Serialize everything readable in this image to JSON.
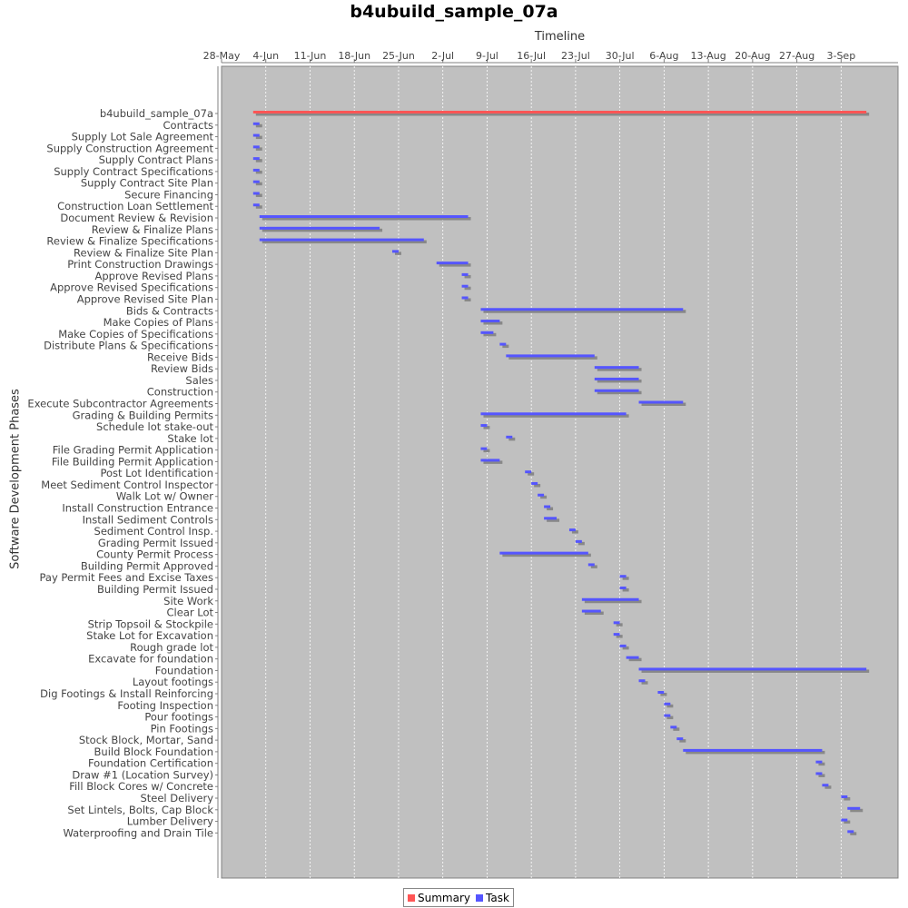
{
  "chart_data": {
    "type": "gantt",
    "title": "b4ubuild_sample_07a",
    "xlabel": "Timeline",
    "ylabel": "Software Development Phases",
    "x_ticks": [
      "28-May",
      "4-Jun",
      "11-Jun",
      "18-Jun",
      "25-Jun",
      "2-Jul",
      "9-Jul",
      "16-Jul",
      "23-Jul",
      "30-Jul",
      "6-Aug",
      "13-Aug",
      "20-Aug",
      "27-Aug",
      "3-Sep"
    ],
    "xlim": [
      "2024-05-28",
      "2024-09-12"
    ],
    "grid": true,
    "legend_position": "bottom",
    "legend": [
      {
        "name": "Summary",
        "color": "#ff5555"
      },
      {
        "name": "Task",
        "color": "#5555ff"
      }
    ],
    "shadow_color": "#888888",
    "tasks": [
      {
        "name": "b4ubuild_sample_07a",
        "type": "summary",
        "start": "2024-06-02",
        "end": "2024-09-06"
      },
      {
        "name": "Contracts",
        "type": "task",
        "start": "2024-06-02",
        "end": "2024-06-02"
      },
      {
        "name": "Supply Lot Sale Agreement",
        "type": "task",
        "start": "2024-06-02",
        "end": "2024-06-02"
      },
      {
        "name": "Supply Construction Agreement",
        "type": "task",
        "start": "2024-06-02",
        "end": "2024-06-02"
      },
      {
        "name": "Supply Contract Plans",
        "type": "task",
        "start": "2024-06-02",
        "end": "2024-06-02"
      },
      {
        "name": "Supply Contract Specifications",
        "type": "task",
        "start": "2024-06-02",
        "end": "2024-06-02"
      },
      {
        "name": "Supply Contract Site Plan",
        "type": "task",
        "start": "2024-06-02",
        "end": "2024-06-02"
      },
      {
        "name": "Secure Financing",
        "type": "task",
        "start": "2024-06-02",
        "end": "2024-06-02"
      },
      {
        "name": "Construction Loan Settlement",
        "type": "task",
        "start": "2024-06-02",
        "end": "2024-06-02"
      },
      {
        "name": "Document Review & Revision",
        "type": "task",
        "start": "2024-06-03",
        "end": "2024-07-05"
      },
      {
        "name": "Review & Finalize Plans",
        "type": "task",
        "start": "2024-06-03",
        "end": "2024-06-21"
      },
      {
        "name": "Review & Finalize Specifications",
        "type": "task",
        "start": "2024-06-03",
        "end": "2024-06-28"
      },
      {
        "name": "Review & Finalize Site Plan",
        "type": "task",
        "start": "2024-06-24",
        "end": "2024-06-24"
      },
      {
        "name": "Print Construction Drawings",
        "type": "task",
        "start": "2024-07-01",
        "end": "2024-07-05"
      },
      {
        "name": "Approve Revised Plans",
        "type": "task",
        "start": "2024-07-05",
        "end": "2024-07-05"
      },
      {
        "name": "Approve Revised Specifications",
        "type": "task",
        "start": "2024-07-05",
        "end": "2024-07-05"
      },
      {
        "name": "Approve Revised Site Plan",
        "type": "task",
        "start": "2024-07-05",
        "end": "2024-07-05"
      },
      {
        "name": "Bids & Contracts",
        "type": "task",
        "start": "2024-07-08",
        "end": "2024-08-08"
      },
      {
        "name": "Make Copies of Plans",
        "type": "task",
        "start": "2024-07-08",
        "end": "2024-07-10"
      },
      {
        "name": "Make Copies of Specifications",
        "type": "task",
        "start": "2024-07-08",
        "end": "2024-07-09"
      },
      {
        "name": "Distribute Plans & Specifications",
        "type": "task",
        "start": "2024-07-11",
        "end": "2024-07-11"
      },
      {
        "name": "Receive Bids",
        "type": "task",
        "start": "2024-07-12",
        "end": "2024-07-25"
      },
      {
        "name": "Review Bids",
        "type": "task",
        "start": "2024-07-26",
        "end": "2024-08-01"
      },
      {
        "name": "Sales",
        "type": "task",
        "start": "2024-07-26",
        "end": "2024-08-01"
      },
      {
        "name": "Construction",
        "type": "task",
        "start": "2024-07-26",
        "end": "2024-08-01"
      },
      {
        "name": "Execute Subcontractor Agreements",
        "type": "task",
        "start": "2024-08-02",
        "end": "2024-08-08"
      },
      {
        "name": "Grading & Building Permits",
        "type": "task",
        "start": "2024-07-08",
        "end": "2024-07-30"
      },
      {
        "name": "Schedule lot stake-out",
        "type": "task",
        "start": "2024-07-08",
        "end": "2024-07-08"
      },
      {
        "name": "Stake lot",
        "type": "task",
        "start": "2024-07-12",
        "end": "2024-07-12"
      },
      {
        "name": "File Grading Permit Application",
        "type": "task",
        "start": "2024-07-08",
        "end": "2024-07-08"
      },
      {
        "name": "File Building Permit Application",
        "type": "task",
        "start": "2024-07-08",
        "end": "2024-07-10"
      },
      {
        "name": "Post Lot Identification",
        "type": "task",
        "start": "2024-07-15",
        "end": "2024-07-15"
      },
      {
        "name": "Meet Sediment Control Inspector",
        "type": "task",
        "start": "2024-07-16",
        "end": "2024-07-16"
      },
      {
        "name": "Walk Lot w/ Owner",
        "type": "task",
        "start": "2024-07-17",
        "end": "2024-07-17"
      },
      {
        "name": "Install Construction Entrance",
        "type": "task",
        "start": "2024-07-18",
        "end": "2024-07-18"
      },
      {
        "name": "Install Sediment Controls",
        "type": "task",
        "start": "2024-07-18",
        "end": "2024-07-19"
      },
      {
        "name": "Sediment Control Insp.",
        "type": "task",
        "start": "2024-07-22",
        "end": "2024-07-22"
      },
      {
        "name": "Grading Permit Issued",
        "type": "task",
        "start": "2024-07-23",
        "end": "2024-07-23"
      },
      {
        "name": "County Permit Process",
        "type": "task",
        "start": "2024-07-11",
        "end": "2024-07-24"
      },
      {
        "name": "Building Permit Approved",
        "type": "task",
        "start": "2024-07-25",
        "end": "2024-07-25"
      },
      {
        "name": "Pay Permit Fees and Excise Taxes",
        "type": "task",
        "start": "2024-07-30",
        "end": "2024-07-30"
      },
      {
        "name": "Building Permit Issued",
        "type": "task",
        "start": "2024-07-30",
        "end": "2024-07-30"
      },
      {
        "name": "Site Work",
        "type": "task",
        "start": "2024-07-24",
        "end": "2024-08-01"
      },
      {
        "name": "Clear Lot",
        "type": "task",
        "start": "2024-07-24",
        "end": "2024-07-26"
      },
      {
        "name": "Strip Topsoil & Stockpile",
        "type": "task",
        "start": "2024-07-29",
        "end": "2024-07-29"
      },
      {
        "name": "Stake Lot for Excavation",
        "type": "task",
        "start": "2024-07-29",
        "end": "2024-07-29"
      },
      {
        "name": "Rough grade lot",
        "type": "task",
        "start": "2024-07-30",
        "end": "2024-07-30"
      },
      {
        "name": "Excavate for foundation",
        "type": "task",
        "start": "2024-07-31",
        "end": "2024-08-01"
      },
      {
        "name": "Foundation",
        "type": "task",
        "start": "2024-08-02",
        "end": "2024-09-06"
      },
      {
        "name": "Layout footings",
        "type": "task",
        "start": "2024-08-02",
        "end": "2024-08-02"
      },
      {
        "name": "Dig Footings & Install Reinforcing",
        "type": "task",
        "start": "2024-08-05",
        "end": "2024-08-05"
      },
      {
        "name": "Footing Inspection",
        "type": "task",
        "start": "2024-08-06",
        "end": "2024-08-06"
      },
      {
        "name": "Pour footings",
        "type": "task",
        "start": "2024-08-06",
        "end": "2024-08-06"
      },
      {
        "name": "Pin Footings",
        "type": "task",
        "start": "2024-08-07",
        "end": "2024-08-07"
      },
      {
        "name": "Stock Block, Mortar, Sand",
        "type": "task",
        "start": "2024-08-08",
        "end": "2024-08-08"
      },
      {
        "name": "Build Block Foundation",
        "type": "task",
        "start": "2024-08-09",
        "end": "2024-08-30"
      },
      {
        "name": "Foundation Certification",
        "type": "task",
        "start": "2024-08-30",
        "end": "2024-08-30"
      },
      {
        "name": "Draw #1 (Location Survey)",
        "type": "task",
        "start": "2024-08-30",
        "end": "2024-08-30"
      },
      {
        "name": "Fill Block Cores w/ Concrete",
        "type": "task",
        "start": "2024-08-31",
        "end": "2024-08-31"
      },
      {
        "name": "Steel Delivery",
        "type": "task",
        "start": "2024-09-03",
        "end": "2024-09-03"
      },
      {
        "name": "Set Lintels, Bolts, Cap Block",
        "type": "task",
        "start": "2024-09-04",
        "end": "2024-09-05"
      },
      {
        "name": "Lumber Delivery",
        "type": "task",
        "start": "2024-09-03",
        "end": "2024-09-03"
      },
      {
        "name": "Waterproofing and Drain Tile",
        "type": "task",
        "start": "2024-09-04",
        "end": "2024-09-04"
      }
    ]
  }
}
